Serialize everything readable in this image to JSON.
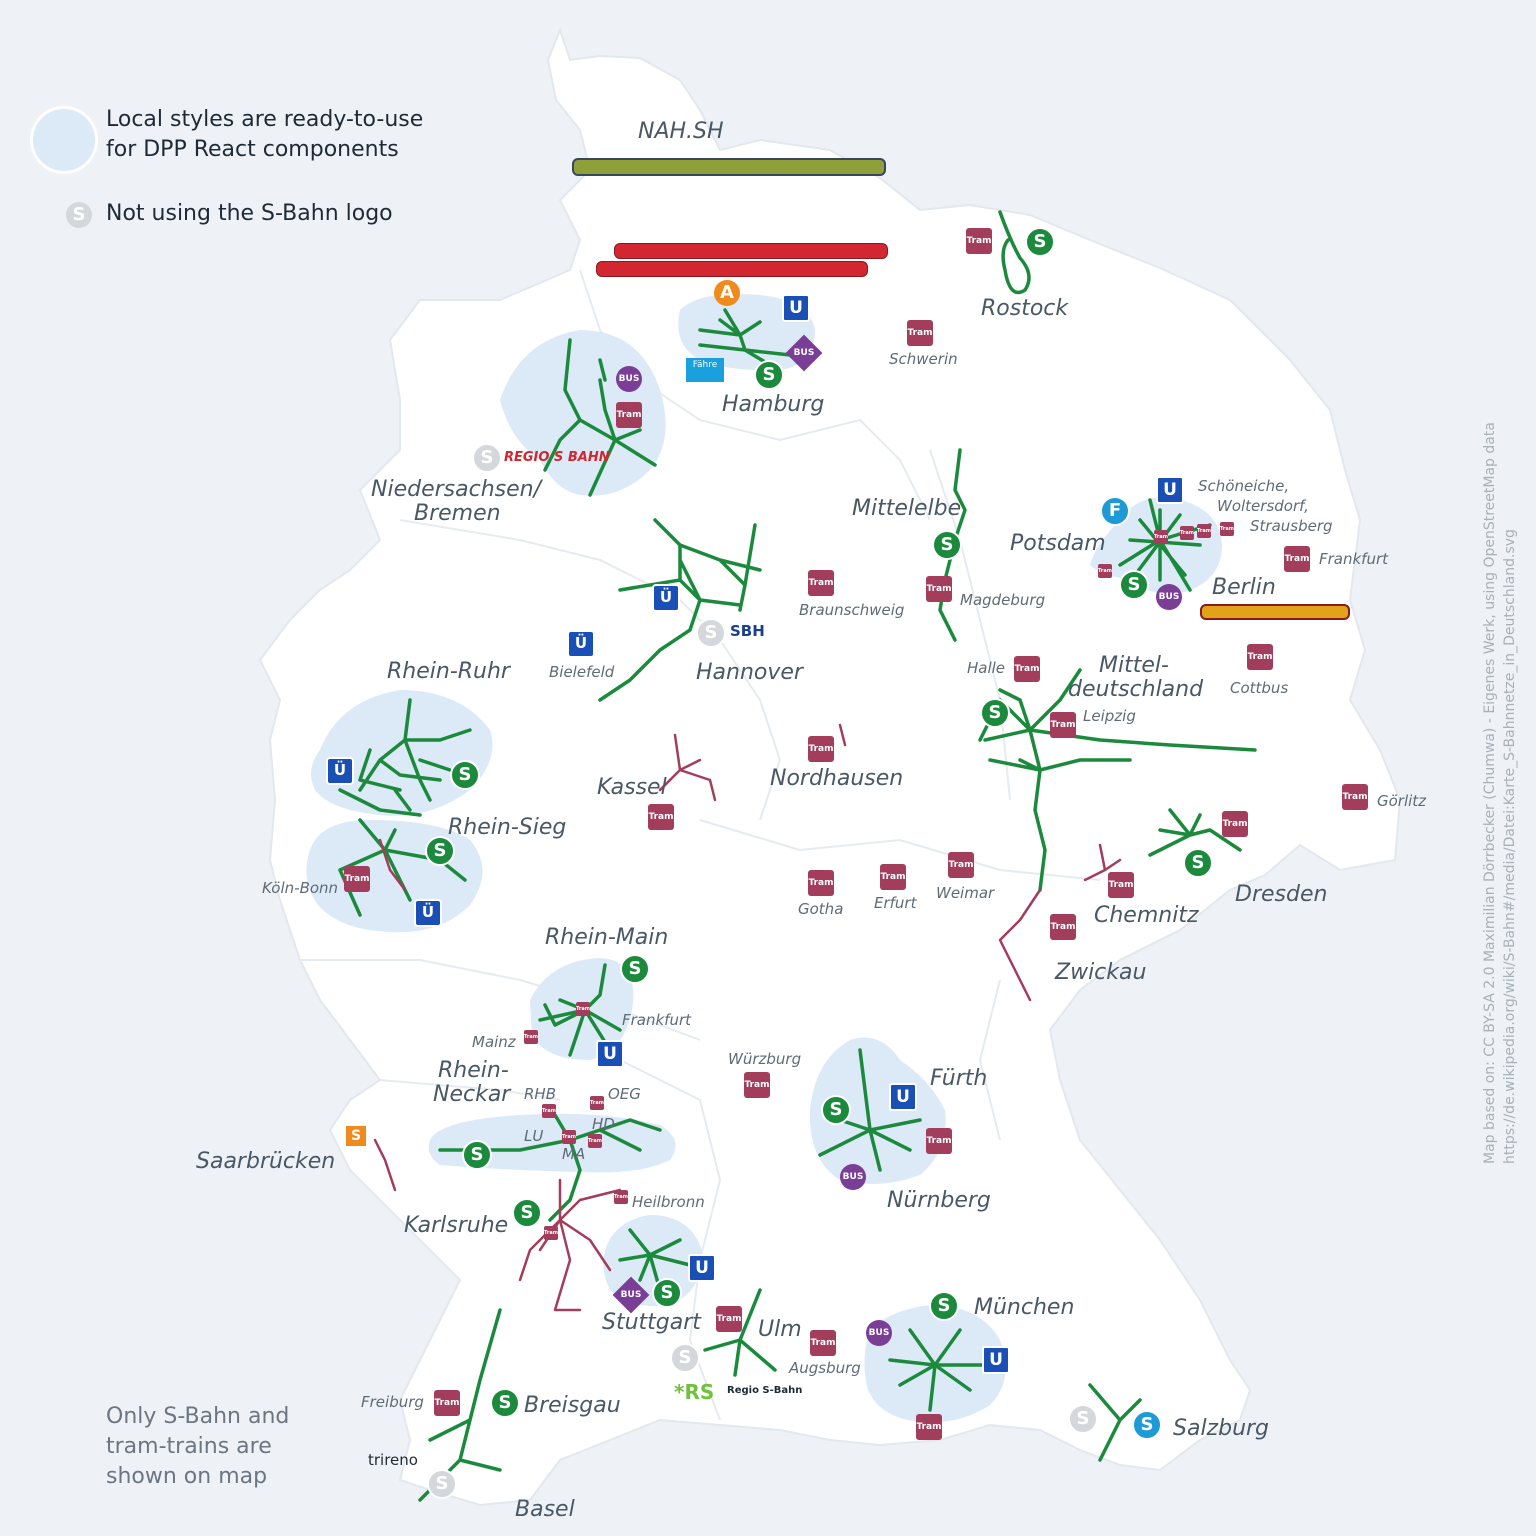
{
  "legend": {
    "styled_line1": "Local styles are ready-to-use",
    "styled_line2": "for DPP React components",
    "not_logo": "Not using the S-Bahn logo",
    "s_glyph": "S"
  },
  "note": {
    "line1": "Only S-Bahn and",
    "line2": "tram-trains are",
    "line3": "shown on map"
  },
  "attribution": {
    "line1": "Map based on: CC BY-SA 2.0 Maximilian Dörrbecker (Chumwa) - Eigenes Werk, using OpenStreetMap data",
    "line2": "https://de.wikipedia.org/wiki/S-Bahn#/media/Datei:Karte_S-Bahnnetze_in_Deutschland.svg"
  },
  "glyphs": {
    "tram": "Tram",
    "s": "S",
    "u": "U",
    "bus": "BUS",
    "akn": "A",
    "f": "F",
    "faehre": "Fähre",
    "stadtbahn": "Ü"
  },
  "brands": {
    "regio_s_bahn": "REGIO S BAHN",
    "sbh": "SBH",
    "rs": "*RS",
    "rs_text": "Regio S-Bahn",
    "trireno": "trireno"
  },
  "cities": {
    "nah_sh": "NAH.SH",
    "rostock": "Rostock",
    "schwerin": "Schwerin",
    "hamburg": "Hamburg",
    "niedersachsen": "Niedersachsen/",
    "bremen": "Bremen",
    "mittelelbe": "Mittelelbe",
    "potsdam": "Potsdam",
    "schoeneiche": "Schöneiche,",
    "woltersdorf": "Woltersdorf,",
    "strausberg": "Strausberg",
    "frankfurt_oder": "Frankfurt",
    "berlin": "Berlin",
    "magdeburg": "Magdeburg",
    "braunschweig": "Braunschweig",
    "hannover": "Hannover",
    "bielefeld": "Bielefeld",
    "rhein_ruhr": "Rhein-Ruhr",
    "halle": "Halle",
    "mittel": "Mittel-",
    "deutschland": "deutschland",
    "leipzig": "Leipzig",
    "cottbus": "Cottbus",
    "kassel": "Kassel",
    "nordhausen": "Nordhausen",
    "rhein_sieg": "Rhein-Sieg",
    "koeln_bonn": "Köln-Bonn",
    "goerlitz": "Görlitz",
    "dresden": "Dresden",
    "chemnitz": "Chemnitz",
    "gotha": "Gotha",
    "erfurt": "Erfurt",
    "weimar": "Weimar",
    "zwickau": "Zwickau",
    "rhein_main": "Rhein-Main",
    "frankfurt_main": "Frankfurt",
    "mainz": "Mainz",
    "wuerzburg": "Würzburg",
    "fuerth": "Fürth",
    "rhein": "Rhein-",
    "neckar": "Neckar",
    "rhb": "RHB",
    "oeg": "OEG",
    "hd": "HD",
    "lu": "LU",
    "ma": "MA",
    "saarbruecken": "Saarbrücken",
    "nuernberg": "Nürnberg",
    "heilbronn": "Heilbronn",
    "karlsruhe": "Karlsruhe",
    "stuttgart": "Stuttgart",
    "ulm": "Ulm",
    "augsburg": "Augsburg",
    "muenchen": "München",
    "freiburg": "Freiburg",
    "breisgau": "Breisgau",
    "salzburg": "Salzburg",
    "basel": "Basel"
  },
  "colors": {
    "background": "#eef2f6",
    "land": "#ffffff",
    "region_fill": "#dceaf8",
    "s_bahn_line": "#1b8a3c",
    "tram_train_line": "#a23d5c",
    "tram_badge": "#a23d5c",
    "u_badge": "#1a4fb5",
    "bus_badge": "#7a3e97"
  }
}
